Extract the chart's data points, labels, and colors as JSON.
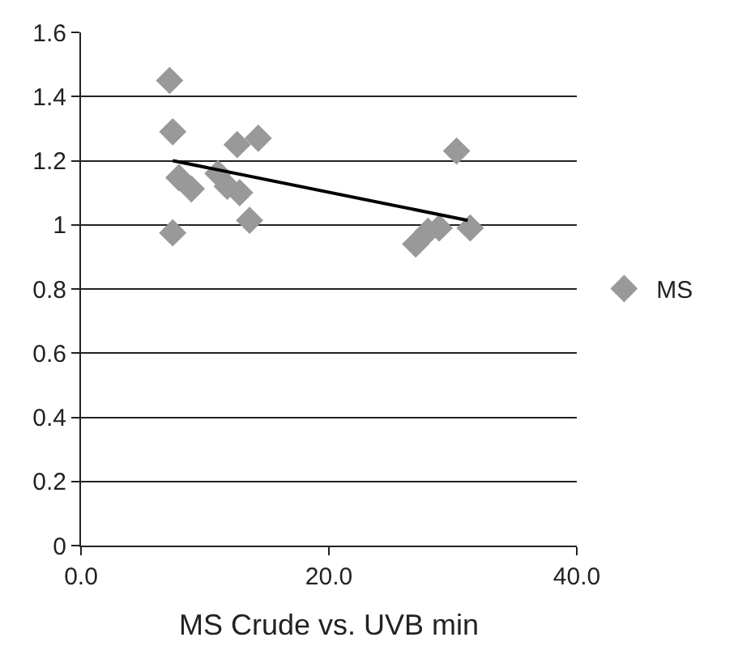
{
  "chart_data": {
    "type": "scatter",
    "xlabel": "MS Crude vs. UVB min",
    "xlim": [
      0,
      40
    ],
    "xticks": [
      {
        "value": 0,
        "label": "0.0"
      },
      {
        "value": 20,
        "label": "20.0"
      },
      {
        "value": 40,
        "label": "40.0"
      }
    ],
    "ylim": [
      0,
      1.6
    ],
    "yticks": [
      0,
      0.2,
      0.4,
      0.6,
      0.8,
      1,
      1.2,
      1.4,
      1.6
    ],
    "grid": "y",
    "legend": "right",
    "series": [
      {
        "name": "MS",
        "color": "#999999",
        "marker": "diamond",
        "x": [
          7.15,
          7.4,
          7.4,
          7.9,
          8.9,
          11.05,
          11.8,
          12.8,
          12.6,
          14.3,
          13.6,
          30.3,
          27.0,
          28.0,
          28.9,
          31.4
        ],
        "values": [
          1.45,
          1.29,
          0.975,
          1.147,
          1.112,
          1.16,
          1.12,
          1.1,
          1.25,
          1.27,
          1.014,
          1.23,
          0.94,
          0.98,
          0.99,
          0.99
        ]
      },
      {
        "type": "line",
        "marker": "none",
        "color": "#000000",
        "x": [
          7.4,
          31.2
        ],
        "values": [
          1.2,
          1.014
        ]
      }
    ]
  }
}
